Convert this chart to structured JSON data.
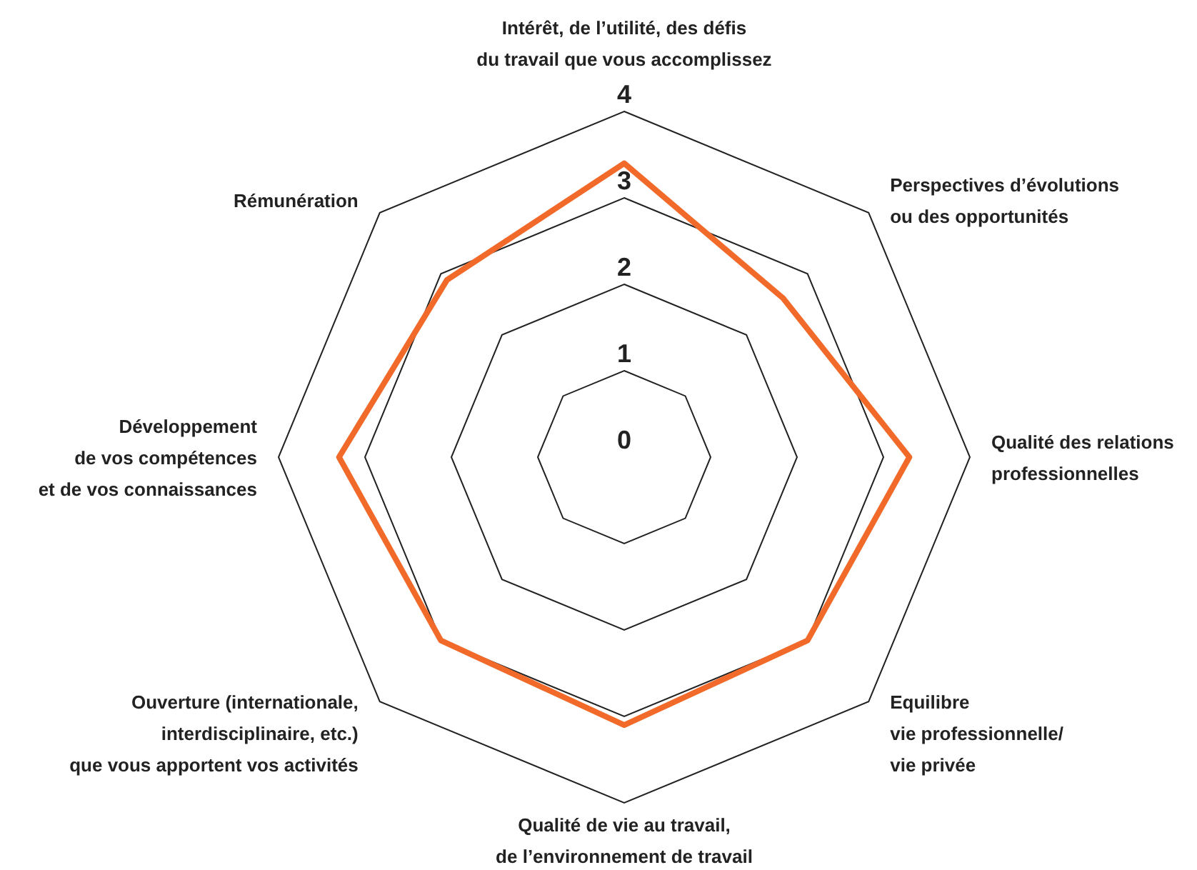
{
  "chart_data": {
    "type": "radar",
    "categories": [
      "Intérêt, de l’utilité, des défis\ndu travail que vous accomplissez",
      "Perspectives d’évolutions\nou des opportunités",
      "Qualité des relations\nprofessionnelles",
      "Equilibre\nvie professionnelle/\nvie privée",
      "Qualité de vie au travail,\nde l’environnement de travail",
      "Ouverture (internationale,\ninterdisciplinaire, etc.)\nque vous apportent vos activités",
      "Développement\nde vos compétences\net de vos connaissances",
      "Rémunération"
    ],
    "series": [
      {
        "color": "#f26a2a",
        "values": [
          3.4,
          2.6,
          3.3,
          3.0,
          3.1,
          3.0,
          3.3,
          2.9
        ]
      }
    ],
    "ylim": [
      0,
      4
    ],
    "yticks": [
      0,
      1,
      2,
      3,
      4
    ],
    "grid": true
  }
}
